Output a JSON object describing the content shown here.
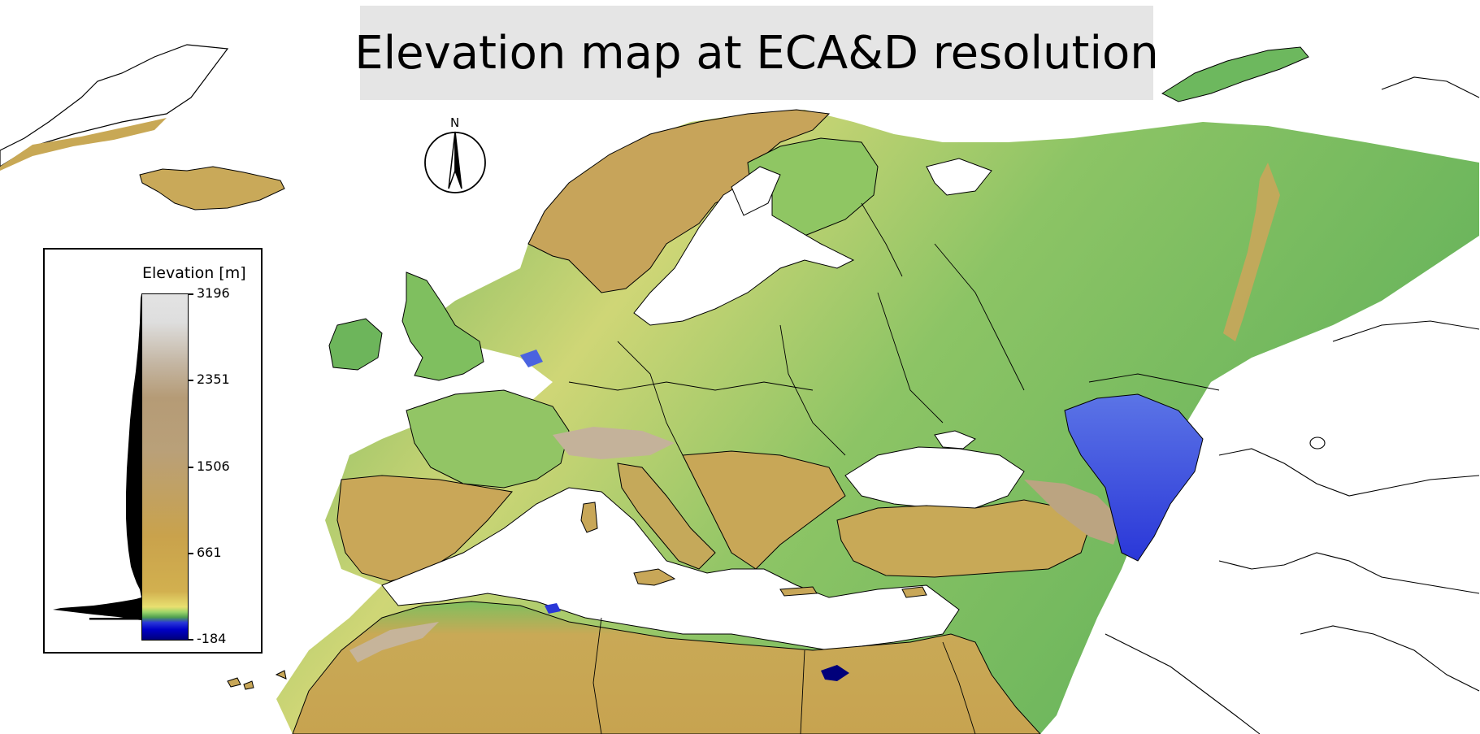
{
  "title": "Elevation map at ECA&D resolution",
  "legend": {
    "title": "Elevation [m]",
    "ticks": [
      "3196",
      "2351",
      "1506",
      "661",
      "-184"
    ],
    "colormap": [
      "#00007a",
      "#0000c8",
      "#4fa050",
      "#9cd46a",
      "#e8e070",
      "#d2b04f",
      "#c9a24c",
      "#b9a079",
      "#dedede"
    ]
  },
  "compass": {
    "label": "N"
  },
  "colors": {
    "lowland_green": "#4aa85a",
    "plains_yellow": "#dfd774",
    "hills_tan": "#c8a855",
    "mountains_grey": "#b8a58b",
    "below_sea_blue": "#2a37d8",
    "title_background": "#e5e5e5"
  }
}
